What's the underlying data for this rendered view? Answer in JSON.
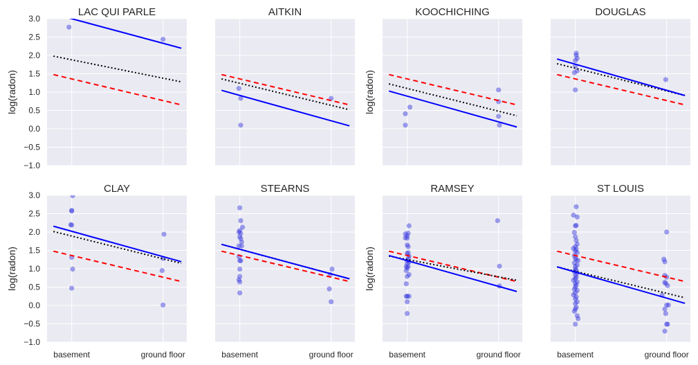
{
  "chart_data": {
    "type": "scatter",
    "layout": "2x4 grid, shared x and y axes",
    "ylabel": "log(radon)",
    "xlabel": "",
    "x_categories": [
      "basement",
      "ground floor"
    ],
    "x_category_values": [
      0,
      1
    ],
    "xlim": [
      -0.27,
      1.26
    ],
    "ylim": [
      -1.0,
      3.0
    ],
    "yticks": [
      "3.0",
      "2.5",
      "2.0",
      "1.5",
      "1.0",
      "0.5",
      "0.0",
      "−0.5",
      "−1.0"
    ],
    "ytick_values": [
      3.0,
      2.5,
      2.0,
      1.5,
      1.0,
      0.5,
      0.0,
      -0.5,
      -1.0
    ],
    "grid": true,
    "line_x_range": [
      -0.2,
      1.2
    ],
    "colors": {
      "background": "#eaeaf2",
      "grid": "#ffffff",
      "points": "#3333dd",
      "county_fit": "#0000ff",
      "pooled_fit": "#ff0000",
      "hierarchical_fit": "#000000"
    },
    "line_legend": {
      "county_fit": "solid blue line",
      "pooled_fit": "dashed red line",
      "hierarchical_fit": "dotted black line"
    },
    "pooled_line": {
      "intercept": 1.36,
      "slope": -0.59
    },
    "panels": [
      {
        "title": "LAC QUI PARLE",
        "points": [
          [
            -0.03,
            2.77
          ],
          [
            1.0,
            2.44
          ]
        ],
        "county_fit": {
          "intercept": 3.0,
          "slope": -0.67
        },
        "hierarchical_fit": {
          "intercept": 1.88,
          "slope": -0.5
        }
      },
      {
        "title": "AITKIN",
        "points": [
          [
            -0.01,
            1.1
          ],
          [
            0.01,
            0.83
          ],
          [
            0.01,
            0.1
          ],
          [
            1.0,
            0.83
          ]
        ],
        "county_fit": {
          "intercept": 0.91,
          "slope": -0.69
        },
        "hierarchical_fit": {
          "intercept": 1.24,
          "slope": -0.6
        }
      },
      {
        "title": "KOOCHICHING",
        "points": [
          [
            0.03,
            0.59
          ],
          [
            -0.02,
            0.41
          ],
          [
            -0.02,
            0.1
          ],
          [
            1.0,
            1.06
          ],
          [
            1.0,
            0.74
          ],
          [
            1.0,
            0.34
          ],
          [
            1.01,
            0.1
          ]
        ],
        "county_fit": {
          "intercept": 0.89,
          "slope": -0.7
        },
        "hierarchical_fit": {
          "intercept": 1.1,
          "slope": -0.62
        }
      },
      {
        "title": "DOUGLAS",
        "points": [
          [
            0.01,
            2.06
          ],
          [
            0.01,
            2.0
          ],
          [
            0.02,
            1.92
          ],
          [
            0.0,
            1.86
          ],
          [
            0.0,
            1.71
          ],
          [
            0.02,
            1.58
          ],
          [
            -0.01,
            1.53
          ],
          [
            0.0,
            1.06
          ],
          [
            0.99,
            1.34
          ]
        ],
        "county_fit": {
          "intercept": 1.76,
          "slope": -0.71
        },
        "hierarchical_fit": {
          "intercept": 1.65,
          "slope": -0.62
        }
      },
      {
        "title": "CLAY",
        "points": [
          [
            0.01,
            2.99
          ],
          [
            0.0,
            2.59
          ],
          [
            0.0,
            2.57
          ],
          [
            -0.01,
            2.2
          ],
          [
            0.0,
            2.19
          ],
          [
            0.0,
            1.31
          ],
          [
            0.01,
            0.99
          ],
          [
            0.0,
            0.47
          ],
          [
            1.01,
            1.94
          ],
          [
            1.0,
            1.28
          ],
          [
            0.99,
            0.95
          ],
          [
            1.0,
            0.01
          ]
        ],
        "county_fit": {
          "intercept": 2.02,
          "slope": -0.69
        },
        "hierarchical_fit": {
          "intercept": 1.89,
          "slope": -0.62
        }
      },
      {
        "title": "STEARNS",
        "points": [
          [
            0.0,
            2.66
          ],
          [
            0.01,
            2.31
          ],
          [
            0.03,
            2.13
          ],
          [
            0.0,
            2.04
          ],
          [
            -0.01,
            2.0
          ],
          [
            0.01,
            1.96
          ],
          [
            0.0,
            1.87
          ],
          [
            0.01,
            1.82
          ],
          [
            0.02,
            1.73
          ],
          [
            -0.01,
            1.62
          ],
          [
            0.02,
            1.62
          ],
          [
            -0.01,
            1.33
          ],
          [
            0.0,
            1.22
          ],
          [
            0.01,
            1.22
          ],
          [
            0.0,
            0.99
          ],
          [
            0.0,
            0.79
          ],
          [
            -0.01,
            0.7
          ],
          [
            0.0,
            0.64
          ],
          [
            0.0,
            0.34
          ],
          [
            1.01,
            0.99
          ],
          [
            0.99,
            0.84
          ],
          [
            0.98,
            0.45
          ],
          [
            1.0,
            0.1
          ]
        ],
        "county_fit": {
          "intercept": 1.53,
          "slope": -0.67
        },
        "hierarchical_fit": {
          "intercept": 1.53,
          "slope": -0.67
        }
      },
      {
        "title": "RAMSEY",
        "points": [
          [
            0.02,
            2.17
          ],
          [
            -0.02,
            1.95
          ],
          [
            0.01,
            1.97
          ],
          [
            0.0,
            1.9
          ],
          [
            -0.02,
            1.84
          ],
          [
            0.0,
            1.83
          ],
          [
            0.0,
            1.65
          ],
          [
            0.01,
            1.6
          ],
          [
            0.01,
            1.44
          ],
          [
            0.0,
            1.41
          ],
          [
            0.02,
            1.34
          ],
          [
            0.01,
            1.27
          ],
          [
            0.0,
            1.22
          ],
          [
            0.02,
            1.18
          ],
          [
            0.0,
            1.14
          ],
          [
            -0.01,
            1.06
          ],
          [
            0.01,
            1.06
          ],
          [
            0.0,
            1.02
          ],
          [
            -0.01,
            0.95
          ],
          [
            0.02,
            0.84
          ],
          [
            0.0,
            0.79
          ],
          [
            -0.01,
            0.59
          ],
          [
            -0.01,
            0.25
          ],
          [
            0.0,
            0.25
          ],
          [
            0.02,
            0.25
          ],
          [
            0.0,
            0.1
          ],
          [
            0.0,
            -0.22
          ],
          [
            0.99,
            2.31
          ],
          [
            1.01,
            1.07
          ],
          [
            1.01,
            0.53
          ]
        ],
        "county_fit": {
          "intercept": 1.22,
          "slope": -0.7
        },
        "hierarchical_fit": {
          "intercept": 1.25,
          "slope": -0.47
        }
      },
      {
        "title": "ST LOUIS",
        "points": [
          [
            0.01,
            2.69
          ],
          [
            -0.02,
            2.46
          ],
          [
            0.02,
            2.41
          ],
          [
            0.01,
            2.18
          ],
          [
            0.0,
            2.17
          ],
          [
            -0.01,
            1.99
          ],
          [
            0.0,
            1.87
          ],
          [
            0.01,
            1.77
          ],
          [
            0.02,
            1.67
          ],
          [
            0.0,
            1.6
          ],
          [
            -0.02,
            1.55
          ],
          [
            0.01,
            1.53
          ],
          [
            0.0,
            1.48
          ],
          [
            0.02,
            1.44
          ],
          [
            -0.01,
            1.36
          ],
          [
            0.0,
            1.29
          ],
          [
            0.01,
            1.25
          ],
          [
            0.03,
            1.22
          ],
          [
            -0.01,
            1.16
          ],
          [
            0.02,
            1.1
          ],
          [
            0.0,
            1.06
          ],
          [
            0.0,
            0.99
          ],
          [
            0.01,
            0.96
          ],
          [
            -0.01,
            0.92
          ],
          [
            0.02,
            0.88
          ],
          [
            0.0,
            0.83
          ],
          [
            0.01,
            0.77
          ],
          [
            0.0,
            0.73
          ],
          [
            -0.02,
            0.69
          ],
          [
            0.02,
            0.64
          ],
          [
            0.0,
            0.6
          ],
          [
            0.01,
            0.55
          ],
          [
            0.0,
            0.5
          ],
          [
            -0.01,
            0.44
          ],
          [
            0.02,
            0.41
          ],
          [
            0.0,
            0.34
          ],
          [
            -0.02,
            0.29
          ],
          [
            0.01,
            0.23
          ],
          [
            0.0,
            0.18
          ],
          [
            0.02,
            0.1
          ],
          [
            0.0,
            0.05
          ],
          [
            0.01,
            -0.05
          ],
          [
            0.0,
            -0.1
          ],
          [
            -0.01,
            -0.16
          ],
          [
            0.02,
            -0.28
          ],
          [
            0.03,
            -0.36
          ],
          [
            0.0,
            -0.51
          ],
          [
            1.0,
            2.0
          ],
          [
            0.97,
            1.26
          ],
          [
            0.98,
            1.19
          ],
          [
            0.98,
            0.82
          ],
          [
            1.0,
            0.77
          ],
          [
            0.98,
            0.63
          ],
          [
            0.99,
            0.6
          ],
          [
            1.01,
            0.54
          ],
          [
            0.95,
            0.28
          ],
          [
            1.0,
            0.01
          ],
          [
            1.02,
            0.01
          ],
          [
            0.98,
            -0.1
          ],
          [
            0.99,
            -0.22
          ],
          [
            1.0,
            -0.51
          ],
          [
            1.01,
            -0.51
          ],
          [
            0.98,
            -0.7
          ]
        ],
        "county_fit": {
          "intercept": 0.91,
          "slope": -0.71
        },
        "hierarchical_fit": {
          "intercept": 0.93,
          "slope": -0.6
        }
      }
    ]
  }
}
